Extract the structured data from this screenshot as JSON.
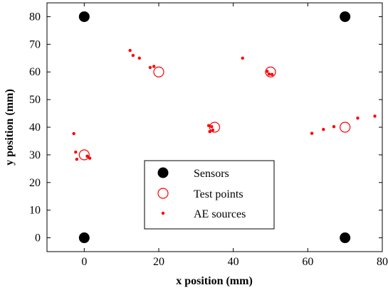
{
  "chart_data": {
    "type": "scatter",
    "xlabel": "x position (mm)",
    "ylabel": "y position (mm)",
    "xlim": [
      -10,
      80
    ],
    "ylim": [
      -5,
      85
    ],
    "xticks": [
      0,
      20,
      40,
      60,
      80
    ],
    "yticks": [
      0,
      10,
      20,
      30,
      40,
      50,
      60,
      70,
      80
    ],
    "legend_position": "bottom-center",
    "series": [
      {
        "name": "Sensors",
        "marker": "filled-circle",
        "color": "#000000",
        "points": [
          [
            0,
            0
          ],
          [
            70,
            0
          ],
          [
            0,
            80
          ],
          [
            70,
            80
          ]
        ]
      },
      {
        "name": "Test points",
        "marker": "open-circle",
        "color": "#ff0000",
        "points": [
          [
            0,
            30
          ],
          [
            20,
            60
          ],
          [
            35,
            40
          ],
          [
            50,
            60
          ],
          [
            70,
            40
          ]
        ]
      },
      {
        "name": "AE sources",
        "marker": "dot",
        "color": "#ff0000",
        "points": [
          [
            -2.8,
            37.7
          ],
          [
            -2.3,
            31
          ],
          [
            -2,
            28.4
          ],
          [
            0.8,
            29.5
          ],
          [
            1.5,
            28.8
          ],
          [
            12.3,
            67.8
          ],
          [
            13.1,
            66
          ],
          [
            14.8,
            65
          ],
          [
            17.7,
            61.6
          ],
          [
            18.7,
            62
          ],
          [
            33.4,
            40.6
          ],
          [
            34.2,
            40.2
          ],
          [
            33.7,
            38.4
          ],
          [
            34.5,
            39
          ],
          [
            42.5,
            65
          ],
          [
            49.1,
            60.2
          ],
          [
            49.6,
            59.2
          ],
          [
            50.4,
            59.1
          ],
          [
            61.1,
            37.8
          ],
          [
            64.2,
            39.2
          ],
          [
            67,
            40.2
          ],
          [
            73.4,
            43.3
          ],
          [
            78,
            44
          ]
        ]
      }
    ]
  }
}
